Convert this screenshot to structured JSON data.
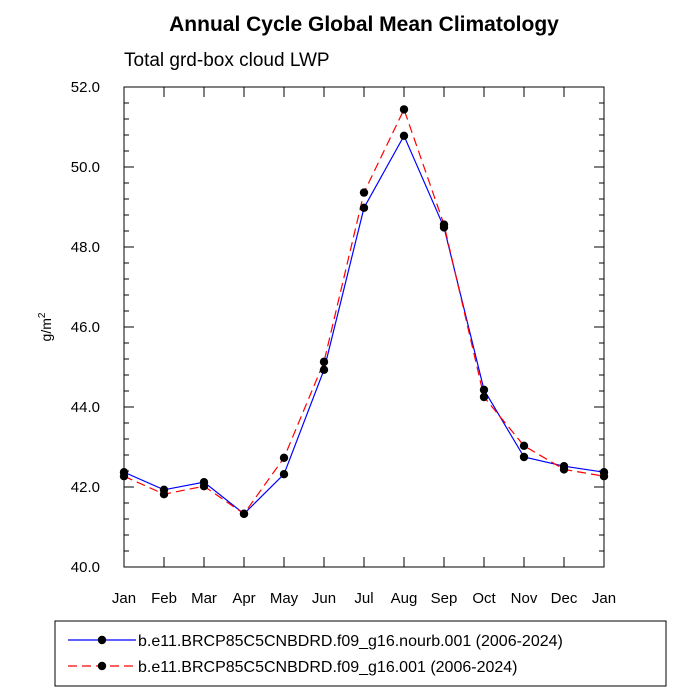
{
  "chart_data": {
    "type": "line",
    "title": "Annual Cycle Global Mean Climatology",
    "subtitle": "Total grd-box cloud LWP",
    "ylabel_main": "g/m",
    "ylabel_sup": "2",
    "xlabel": "",
    "categories": [
      "Jan",
      "Feb",
      "Mar",
      "Apr",
      "May",
      "Jun",
      "Jul",
      "Aug",
      "Sep",
      "Oct",
      "Nov",
      "Dec",
      "Jan"
    ],
    "ylim": [
      40.0,
      52.0
    ],
    "yticks": [
      "40.0",
      "42.0",
      "44.0",
      "46.0",
      "48.0",
      "50.0",
      "52.0"
    ],
    "grid": false,
    "legend_position": "bottom",
    "series": [
      {
        "name": "b.e11.BRCP85C5CNBDRD.f09_g16.nourb.001 (2006-2024)",
        "color": "#0000ff",
        "style": "solid",
        "values": [
          42.37,
          41.93,
          42.12,
          41.33,
          42.32,
          44.93,
          48.98,
          50.78,
          48.49,
          44.43,
          42.75,
          42.52,
          42.37
        ]
      },
      {
        "name": "b.e11.BRCP85C5CNBDRD.f09_g16.001 (2006-2024)",
        "color": "#ff0000",
        "style": "dashed",
        "values": [
          42.27,
          41.82,
          42.02,
          41.33,
          42.73,
          45.13,
          49.36,
          51.44,
          48.56,
          44.25,
          43.03,
          42.44,
          42.27
        ]
      }
    ]
  }
}
